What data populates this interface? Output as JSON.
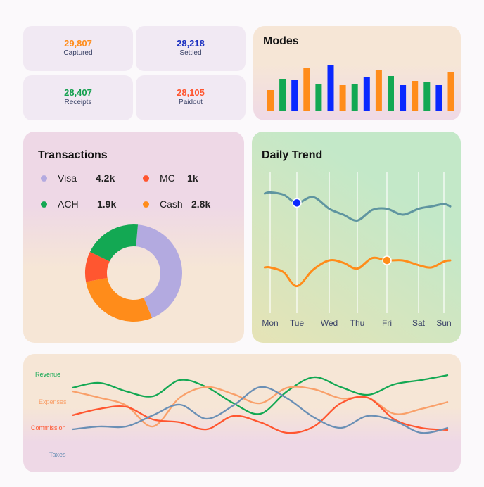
{
  "stats": [
    {
      "value": "29,807",
      "label": "Captured",
      "color": "#ff8c1a"
    },
    {
      "value": "28,218",
      "label": "Settled",
      "color": "#1a2fc0"
    },
    {
      "value": "28,407",
      "label": "Receipts",
      "color": "#13a04e"
    },
    {
      "value": "28,105",
      "label": "Paidout",
      "color": "#ff5630"
    }
  ],
  "modes": {
    "title": "Modes"
  },
  "transactions": {
    "title": "Transactions",
    "legend": [
      {
        "name": "Visa",
        "value": "4.2k",
        "color": "#b3aae0"
      },
      {
        "name": "MC",
        "value": "1k",
        "color": "#ff5630"
      },
      {
        "name": "ACH",
        "value": "1.9k",
        "color": "#13a853"
      },
      {
        "name": "Cash",
        "value": "2.8k",
        "color": "#ff8c1a"
      }
    ]
  },
  "trend": {
    "title": "Daily Trend"
  },
  "chart_data": [
    {
      "type": "bar",
      "title": "Modes",
      "values": [
        30,
        46,
        44,
        61,
        39,
        66,
        37,
        39,
        49,
        58,
        50,
        37,
        43,
        42,
        37,
        56
      ],
      "colors": [
        "#ff8c1a",
        "#13a853",
        "#0a28ff",
        "#ff8c1a",
        "#13a853",
        "#0a28ff",
        "#ff8c1a",
        "#13a853",
        "#0a28ff",
        "#ff8c1a",
        "#13a853",
        "#0a28ff",
        "#ff8c1a",
        "#13a853",
        "#0a28ff",
        "#ff8c1a"
      ],
      "grid": false
    },
    {
      "type": "pie",
      "title": "Transactions",
      "donut": true,
      "slices": [
        {
          "name": "Visa",
          "value": 4.2,
          "color": "#b3aae0"
        },
        {
          "name": "Cash",
          "value": 2.8,
          "color": "#ff8c1a"
        },
        {
          "name": "MC",
          "value": 1.0,
          "color": "#ff5630"
        },
        {
          "name": "ACH",
          "value": 1.9,
          "color": "#13a853"
        }
      ]
    },
    {
      "type": "line",
      "title": "Daily Trend",
      "categories": [
        "Mon",
        "Tue",
        "Wed",
        "Thu",
        "Fri",
        "Sat",
        "Sun"
      ],
      "x": [
        -0.2,
        0,
        0.5,
        1,
        1.5,
        2,
        2.5,
        3,
        3.5,
        4,
        4.5,
        5,
        5.5,
        6,
        6.25
      ],
      "series": [
        {
          "values": [
            89,
            90,
            88,
            81,
            86,
            76,
            71,
            66,
            75,
            76,
            71,
            76,
            78,
            80,
            78
          ],
          "color": "#5f95a0",
          "marker_at": "Tue",
          "marker_color": "#0a28ff"
        },
        {
          "values": [
            26,
            26,
            22,
            10,
            24,
            32,
            30,
            25,
            34,
            32,
            32,
            28,
            26,
            31,
            32
          ],
          "color": "#ff8c1a",
          "marker_at": "Fri",
          "marker_color": "#ff8c1a"
        }
      ],
      "ylim": [
        0,
        100
      ],
      "grid": "vertical"
    },
    {
      "type": "line",
      "series": [
        {
          "name": "Revenue",
          "color": "#13a853",
          "values": [
            82,
            89,
            77,
            70,
            93,
            83,
            60,
            45,
            77,
            97,
            83,
            72,
            87,
            93,
            100
          ]
        },
        {
          "name": "Expenses",
          "color": "#f9a06a",
          "values": [
            77,
            68,
            57,
            27,
            68,
            83,
            73,
            60,
            82,
            80,
            67,
            68,
            45,
            52,
            62
          ]
        },
        {
          "name": "Commission",
          "color": "#ff5630",
          "values": [
            43,
            52,
            55,
            37,
            33,
            23,
            42,
            33,
            18,
            27,
            60,
            68,
            37,
            25,
            22
          ]
        },
        {
          "name": "Taxes",
          "color": "#6a8fb5",
          "values": [
            23,
            27,
            27,
            43,
            58,
            38,
            57,
            83,
            67,
            40,
            25,
            42,
            35,
            18,
            25
          ]
        }
      ],
      "ylim": [
        0,
        110
      ],
      "legend": "left"
    }
  ]
}
